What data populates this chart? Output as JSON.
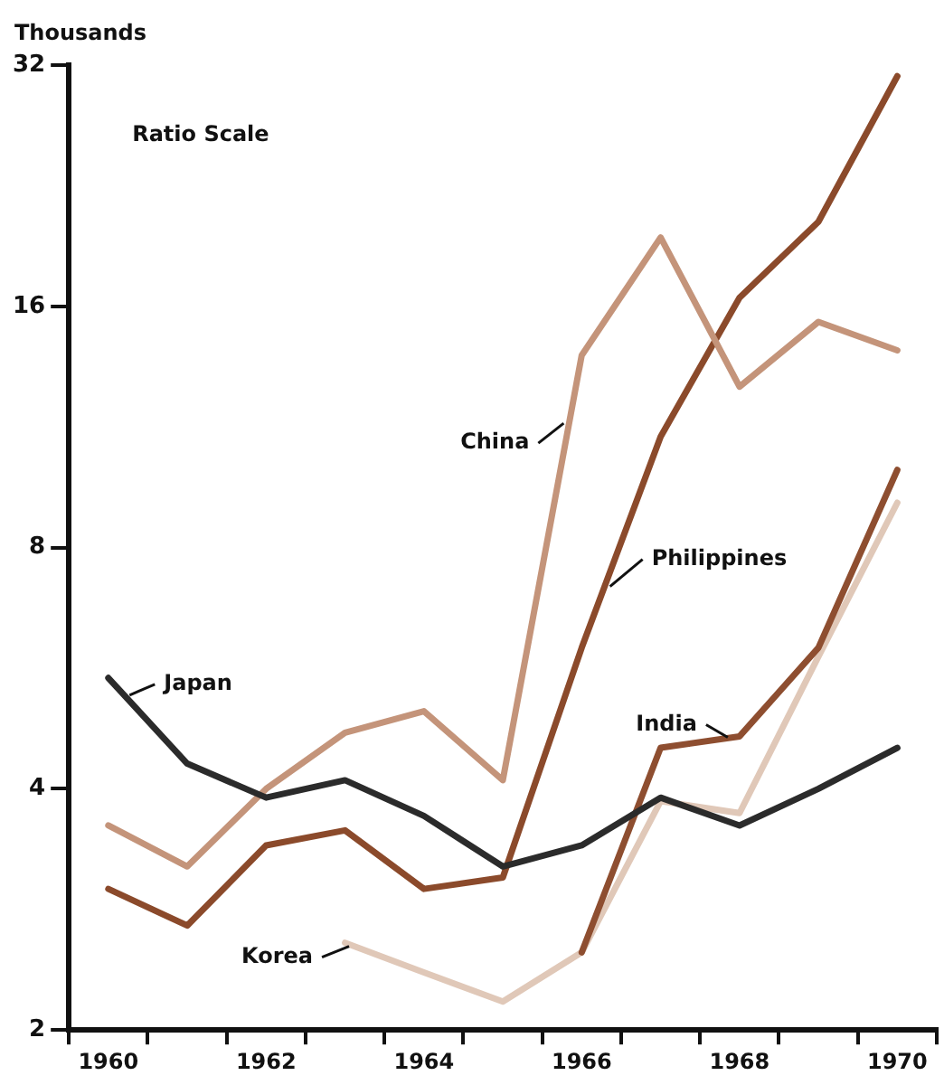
{
  "chart_data": {
    "type": "line",
    "ylabel": "Thousands",
    "annotations": [
      "Ratio Scale"
    ],
    "categories": [
      "1960",
      null,
      "1962",
      null,
      "1964",
      null,
      "1966",
      null,
      "1968",
      null,
      "1970"
    ],
    "log": "y",
    "ylim": [
      2,
      32
    ],
    "yticks": [
      2,
      4,
      8,
      16,
      32
    ],
    "grid": false,
    "legend": false,
    "marker": "none",
    "line_style": "solid",
    "series": [
      {
        "name": "Japan",
        "color": "#2b2b2b",
        "values": [
          5.5,
          4.3,
          3.9,
          4.1,
          3.7,
          3.2,
          3.4,
          3.9,
          3.6,
          4.0,
          4.5
        ]
      },
      {
        "name": "China",
        "color": "#c4947a",
        "values": [
          3.6,
          3.2,
          4.0,
          4.7,
          5.0,
          4.1,
          13.9,
          19.5,
          12.7,
          15.3,
          14.1
        ]
      },
      {
        "name": "Philippines",
        "color": "#8b4a2b",
        "values": [
          3.0,
          2.7,
          3.4,
          3.55,
          3.0,
          3.1,
          6.0,
          11,
          16.4,
          20.4,
          31
        ]
      },
      {
        "name": "India",
        "color": "#8e4e30",
        "values": [
          null,
          null,
          null,
          null,
          null,
          null,
          2.5,
          4.5,
          4.65,
          6.0,
          10.0
        ]
      },
      {
        "name": "Korea",
        "color": "#e0c8b8",
        "values": [
          null,
          null,
          null,
          2.57,
          2.36,
          2.17,
          2.5,
          3.86,
          3.73,
          5.85,
          9.1
        ]
      }
    ]
  }
}
